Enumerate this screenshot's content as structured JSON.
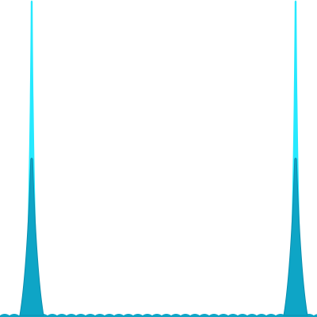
{
  "chart_data": {
    "type": "area",
    "description_free": true,
    "x_range": [
      0,
      400
    ],
    "y_range": [
      0,
      1
    ],
    "grid": false,
    "legend": "none",
    "peaks": [
      {
        "center": 40,
        "height_outer": 1.0,
        "height_inner": 0.5
      },
      {
        "center": 373,
        "height_outer": 1.0,
        "height_inner": 0.5
      }
    ],
    "baseline_ripple_period": 12,
    "series": [
      {
        "values_profile": "outer",
        "color": "#19e6f2"
      },
      {
        "values_profile": "inner",
        "color": "#12a6c4"
      }
    ]
  },
  "colors": {
    "outer_fill": "#00e5ff",
    "outer_fill_opacity": 0.85,
    "inner_fill": "#0ea5c6",
    "inner_stroke": "#0b8fb0"
  }
}
